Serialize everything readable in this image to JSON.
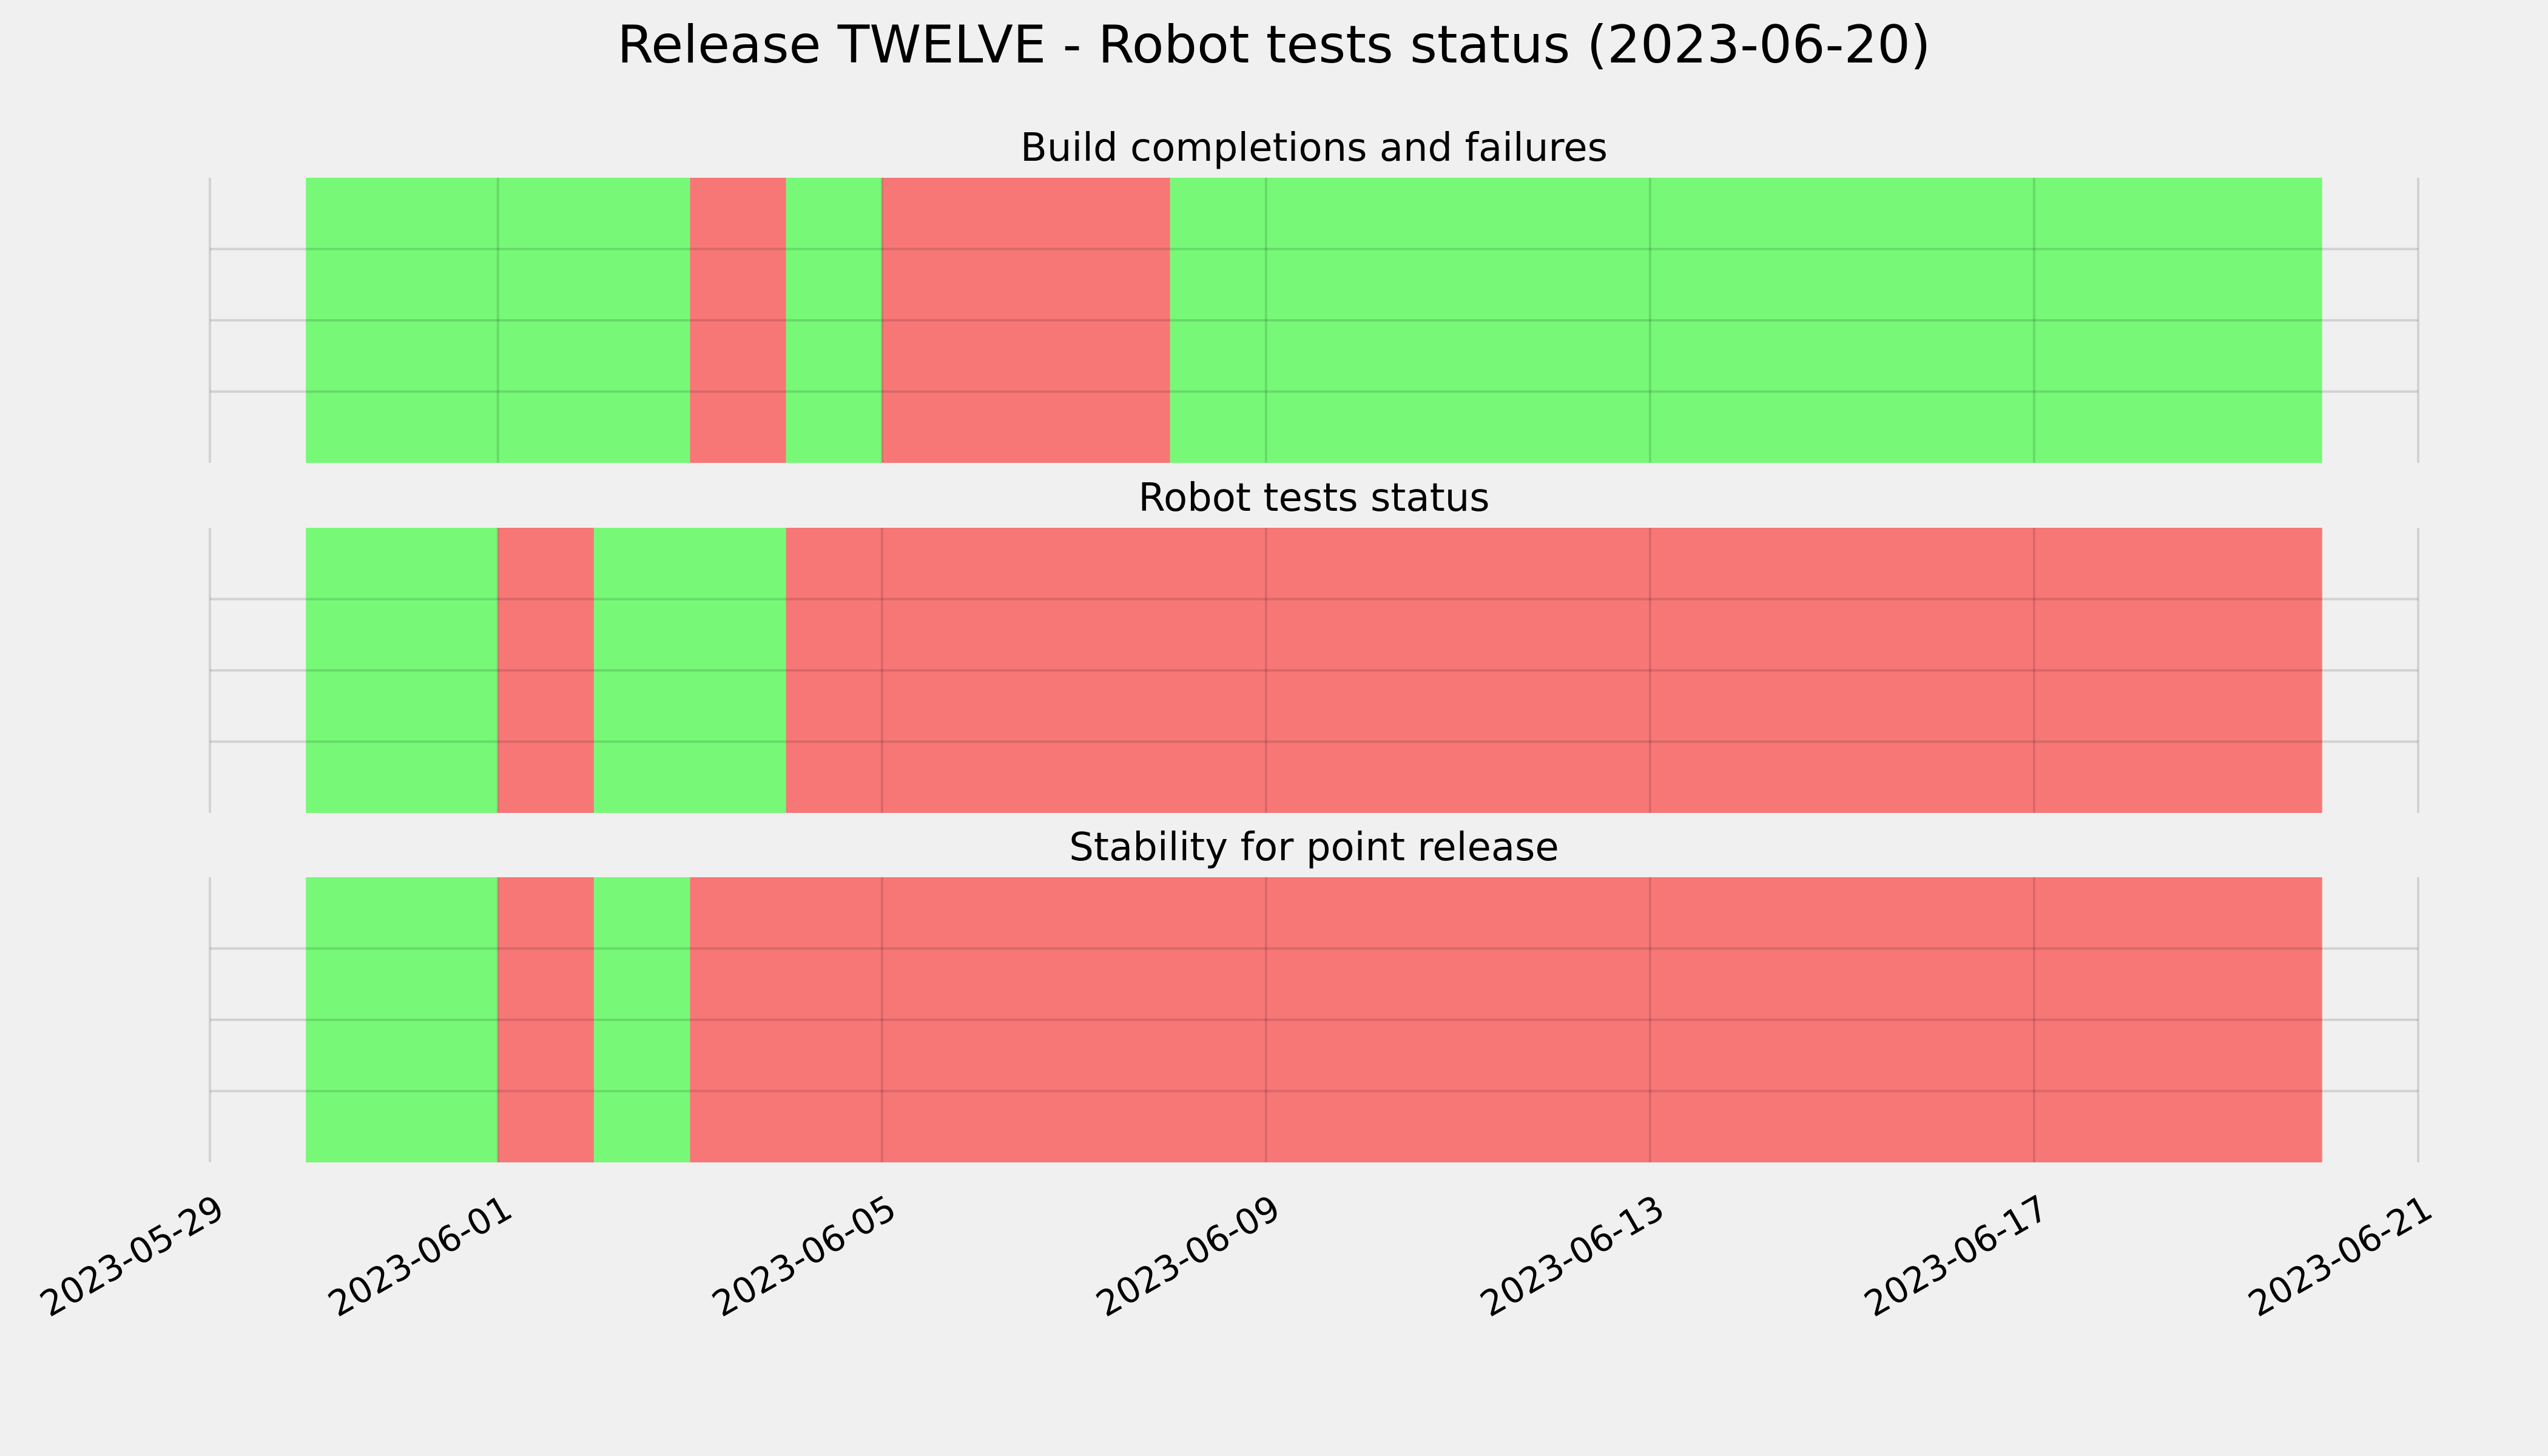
{
  "figure": {
    "title": "Release TWELVE - Robot tests status (2023-06-20)",
    "background": "#f0f0f0"
  },
  "colors": {
    "pass": "#77f977",
    "fail": "#f77777",
    "grid": "#cbcbcb"
  },
  "chart_data": [
    {
      "type": "timeline",
      "title": "Build completions and failures",
      "xlim": [
        "2023-05-29",
        "2023-06-21"
      ],
      "xticks": [
        "2023-05-29",
        "2023-06-01",
        "2023-06-05",
        "2023-06-09",
        "2023-06-13",
        "2023-06-17",
        "2023-06-21"
      ],
      "segments": [
        {
          "start": "2023-05-30",
          "end": "2023-06-03",
          "status": "pass"
        },
        {
          "start": "2023-06-03",
          "end": "2023-06-04",
          "status": "fail"
        },
        {
          "start": "2023-06-04",
          "end": "2023-06-05",
          "status": "pass"
        },
        {
          "start": "2023-06-05",
          "end": "2023-06-08",
          "status": "fail"
        },
        {
          "start": "2023-06-08",
          "end": "2023-06-20",
          "status": "pass"
        }
      ],
      "grid": true
    },
    {
      "type": "timeline",
      "title": "Robot tests status",
      "xlim": [
        "2023-05-29",
        "2023-06-21"
      ],
      "xticks": [
        "2023-05-29",
        "2023-06-01",
        "2023-06-05",
        "2023-06-09",
        "2023-06-13",
        "2023-06-17",
        "2023-06-21"
      ],
      "segments": [
        {
          "start": "2023-05-30",
          "end": "2023-06-01",
          "status": "pass"
        },
        {
          "start": "2023-06-01",
          "end": "2023-06-02",
          "status": "fail"
        },
        {
          "start": "2023-06-02",
          "end": "2023-06-04",
          "status": "pass"
        },
        {
          "start": "2023-06-04",
          "end": "2023-06-20",
          "status": "fail"
        }
      ],
      "grid": true
    },
    {
      "type": "timeline",
      "title": "Stability for point release",
      "xlim": [
        "2023-05-29",
        "2023-06-21"
      ],
      "xticks": [
        "2023-05-29",
        "2023-06-01",
        "2023-06-05",
        "2023-06-09",
        "2023-06-13",
        "2023-06-17",
        "2023-06-21"
      ],
      "segments": [
        {
          "start": "2023-05-30",
          "end": "2023-06-01",
          "status": "pass"
        },
        {
          "start": "2023-06-01",
          "end": "2023-06-02",
          "status": "fail"
        },
        {
          "start": "2023-06-02",
          "end": "2023-06-03",
          "status": "pass"
        },
        {
          "start": "2023-06-03",
          "end": "2023-06-20",
          "status": "fail"
        }
      ],
      "grid": true
    }
  ]
}
